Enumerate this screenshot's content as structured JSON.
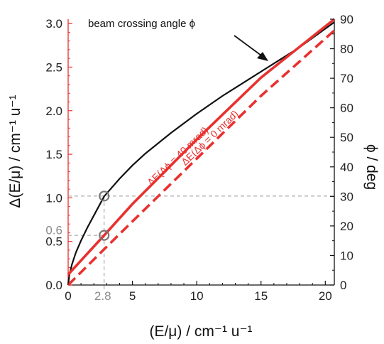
{
  "chart_data": {
    "type": "line",
    "xlabel": "(E/μ) / cm⁻¹ u⁻¹",
    "ylabel_left": "Δ(E/μ) / cm⁻¹ u⁻¹",
    "ylabel_right": "ϕ / deg",
    "xlim": [
      0,
      20.7
    ],
    "ylim_left": [
      0,
      3.05
    ],
    "ylim_right": [
      0,
      90
    ],
    "x_ticks": [
      "0",
      "5",
      "10",
      "15",
      "20"
    ],
    "x_extra_tick": "2.8",
    "y_left_ticks": [
      "0.0",
      "0.5",
      "1.0",
      "1.5",
      "2.0",
      "2.5",
      "3.0"
    ],
    "y_left_extra_tick": "0.6",
    "y_right_ticks": [
      "0",
      "10",
      "20",
      "30",
      "40",
      "50",
      "60",
      "70",
      "80",
      "90"
    ],
    "series": [
      {
        "name": "beam crossing angle ϕ",
        "axis": "right",
        "color": "#111111",
        "x": [
          0,
          0.1,
          0.3,
          0.6,
          1.0,
          1.5,
          2.0,
          2.8,
          4.0,
          5.0,
          6.0,
          8.0,
          10.0,
          12.0,
          14.0,
          16.0,
          18.0,
          20.7
        ],
        "y": [
          0,
          3.5,
          7,
          11,
          15,
          19.5,
          23.5,
          30,
          36,
          40.5,
          44.5,
          51.5,
          58,
          64,
          69.5,
          75,
          80.5,
          89
        ]
      },
      {
        "name": "ΔE(Δϕ = 40 mrad)",
        "axis": "left",
        "color": "#e8312f",
        "x": [
          0,
          2.8,
          5,
          10,
          15,
          20.7
        ],
        "y": [
          0.12,
          0.57,
          0.93,
          1.67,
          2.38,
          3.05
        ]
      },
      {
        "name": "ΔE(Δϕ = 0 mrad)",
        "axis": "left",
        "color": "#e8312f",
        "dashed": true,
        "x": [
          0,
          2.8,
          5,
          10,
          15,
          20.7
        ],
        "y": [
          0,
          0.41,
          0.73,
          1.45,
          2.17,
          2.92
        ]
      }
    ],
    "markers": [
      {
        "x": 2.8,
        "y_left": 1.02
      },
      {
        "x": 2.8,
        "y_left": 0.57
      }
    ],
    "guide_lines": {
      "horizontal_left_values": [
        1.02,
        0.57
      ],
      "vertical_x": 2.8
    },
    "annotations": [
      {
        "text": "beam crossing angle ϕ"
      },
      {
        "text": "ΔE(Δϕ = 40 mrad)"
      },
      {
        "text": "ΔE(Δϕ = 0 mrad)"
      }
    ],
    "colors": {
      "left_axis": "#e8312f",
      "black": "#111111",
      "guide": "#999999",
      "marker": "#777777"
    }
  }
}
